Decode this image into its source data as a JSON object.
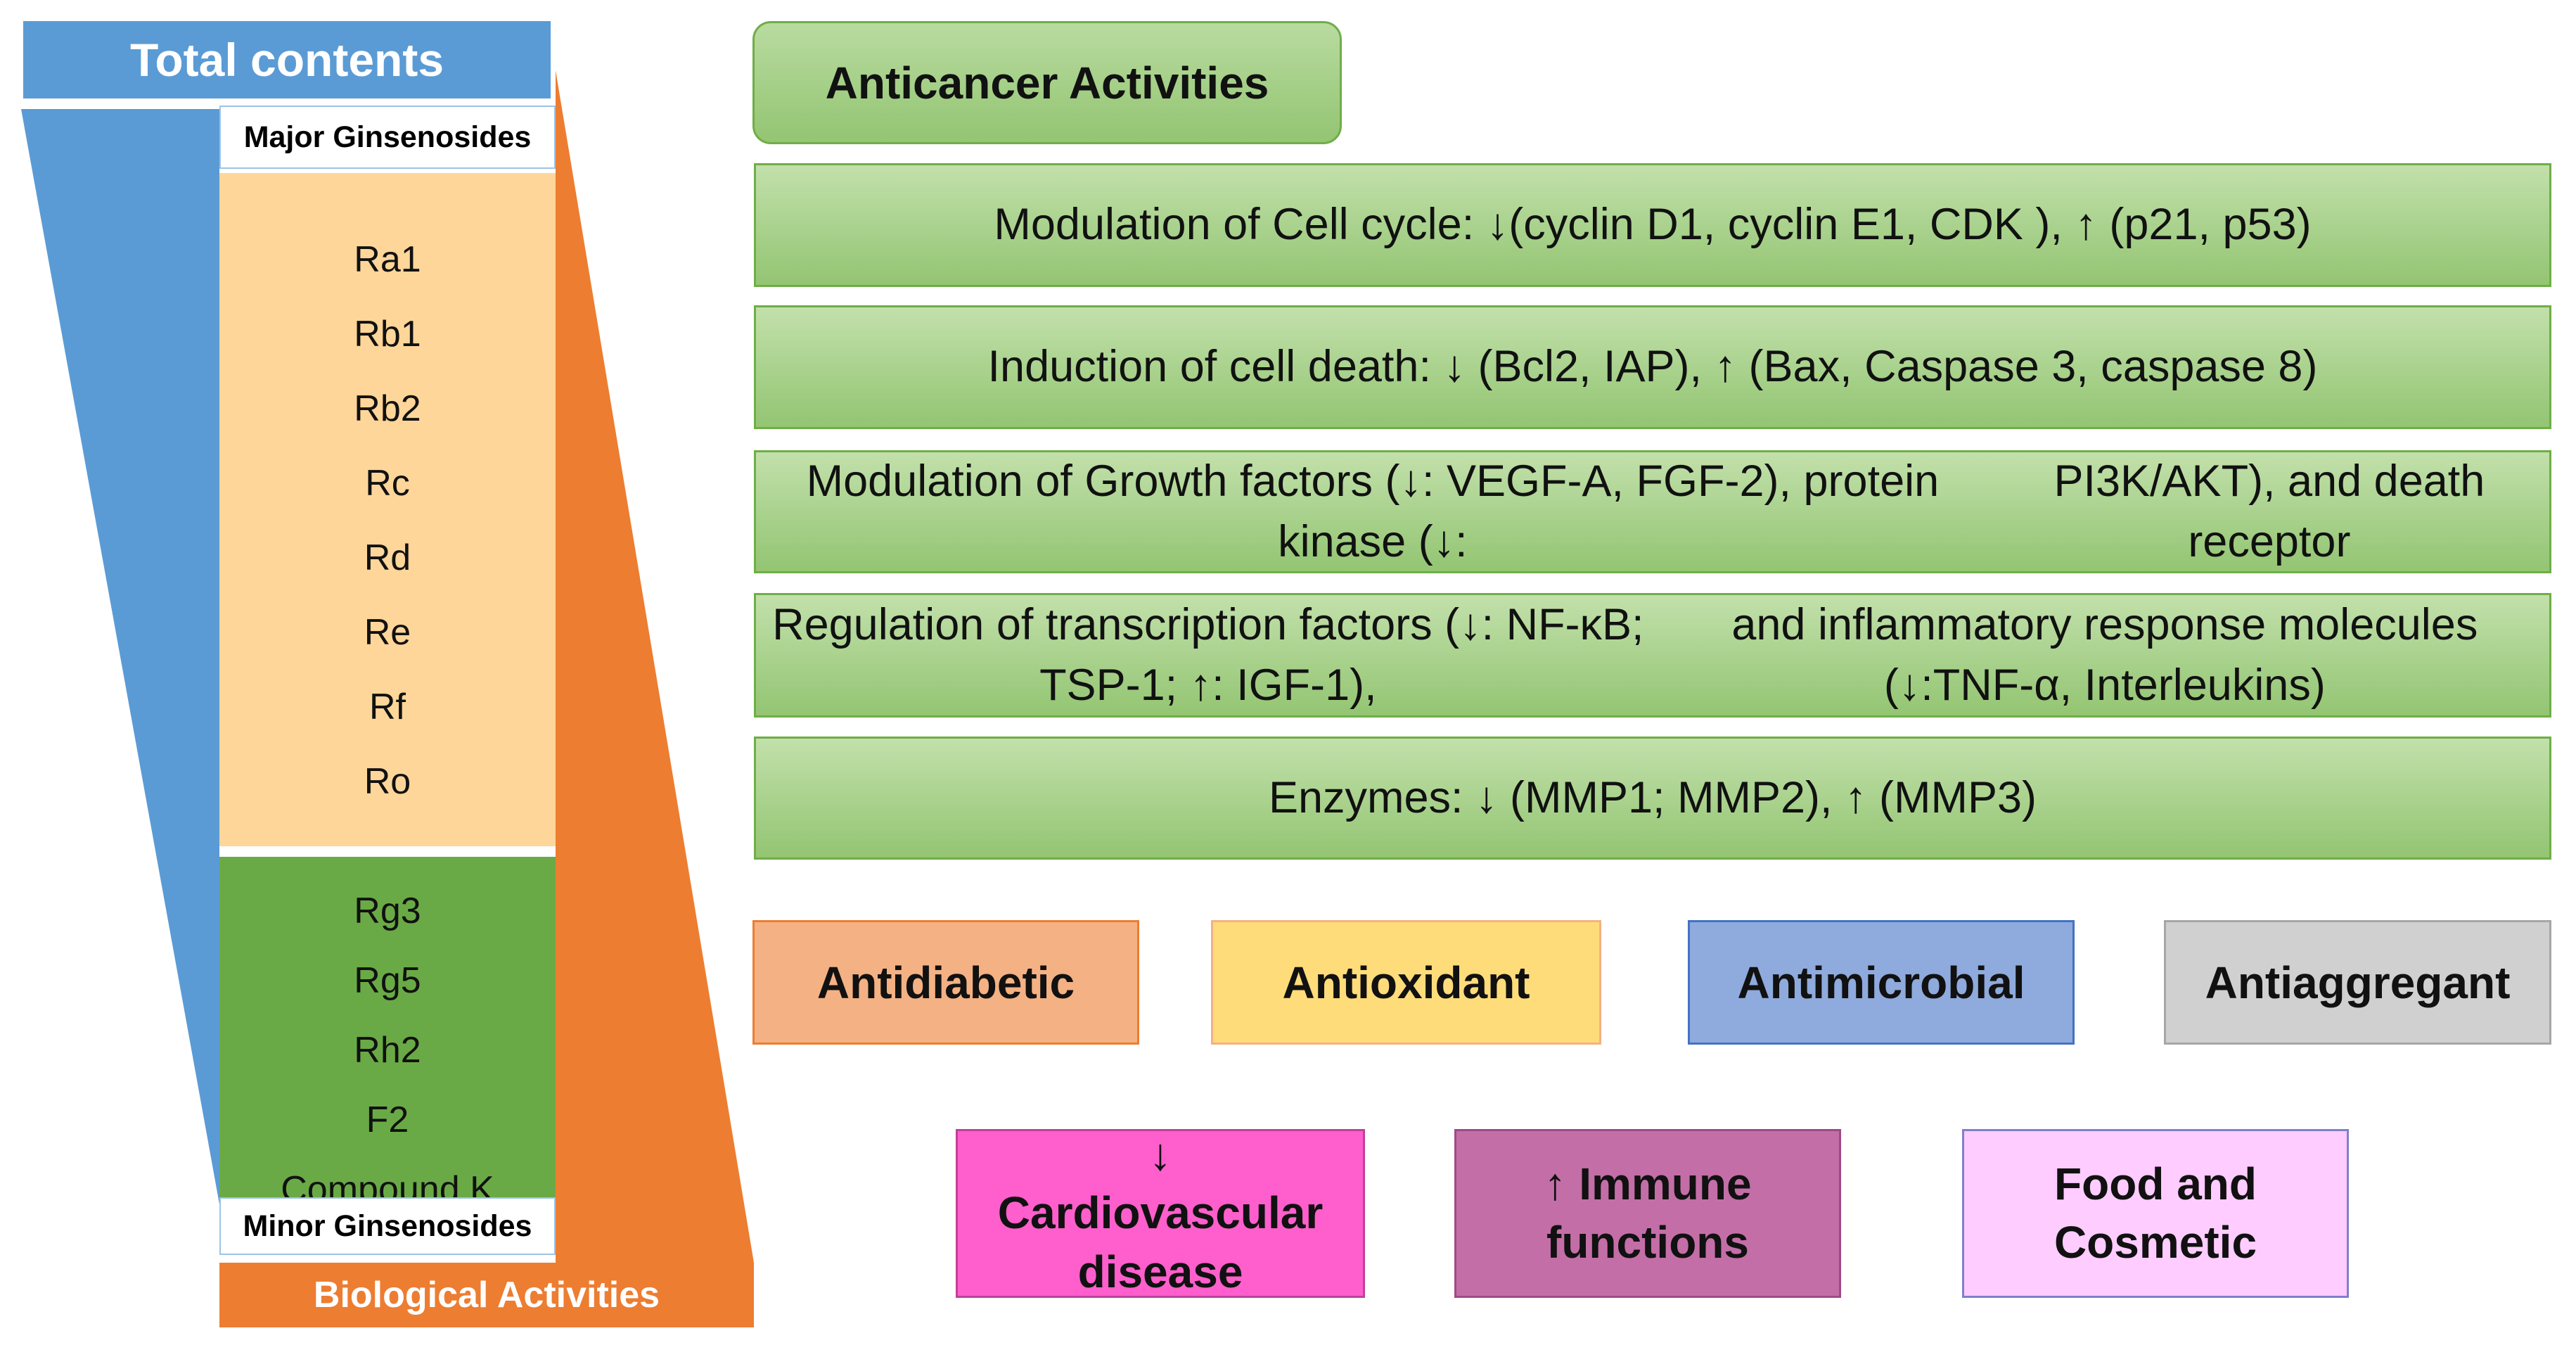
{
  "left_panel": {
    "title": "Total contents",
    "major_label": "Major Ginsenosides",
    "major_items": [
      "Ra1",
      "Rb1",
      "Rb2",
      "Rc",
      "Rd",
      "Re",
      "Rf",
      "Ro"
    ],
    "minor_items": [
      "Rg3",
      "Rg5",
      "Rh2",
      "F2",
      "Compound K"
    ],
    "minor_label": "Minor Ginsenosides",
    "bio_label": "Biological Activities"
  },
  "anticancer": {
    "title": "Anticancer Activities",
    "mechanisms": [
      {
        "lines": [
          "Modulation of Cell cycle: ↓(cyclin D1, cyclin E1, CDK ), ↑ (p21, p53)"
        ]
      },
      {
        "lines": [
          "Induction of cell death: ↓ (Bcl2, IAP), ↑ (Bax, Caspase 3, caspase 8)"
        ]
      },
      {
        "lines": [
          "Modulation of Growth factors (↓: VEGF-A, FGF-2), protein kinase (↓:",
          "PI3K/AKT), and death receptor"
        ]
      },
      {
        "lines": [
          "Regulation of transcription factors (↓: NF-κB; TSP-1; ↑: IGF-1),",
          "and inflammatory response molecules (↓:TNF-α, Interleukins)"
        ]
      },
      {
        "lines": [
          "Enzymes: ↓ (MMP1; MMP2), ↑ (MMP3)"
        ]
      }
    ]
  },
  "activities": [
    "Antidiabetic",
    "Antioxidant",
    "Antimicrobial",
    "Antiaggregant"
  ],
  "bottom_boxes": [
    {
      "lines": [
        "↓",
        "Cardiovascular",
        "disease"
      ]
    },
    {
      "lines": [
        "↑ Immune",
        "functions"
      ]
    },
    {
      "lines": [
        "Food and",
        "Cosmetic"
      ]
    }
  ],
  "colors": {
    "blue": "#5b9bd5",
    "orange": "#ed7d31",
    "major_fill": "#ffd699",
    "minor_fill": "#6aaa46",
    "mech_green": "#93c572"
  }
}
